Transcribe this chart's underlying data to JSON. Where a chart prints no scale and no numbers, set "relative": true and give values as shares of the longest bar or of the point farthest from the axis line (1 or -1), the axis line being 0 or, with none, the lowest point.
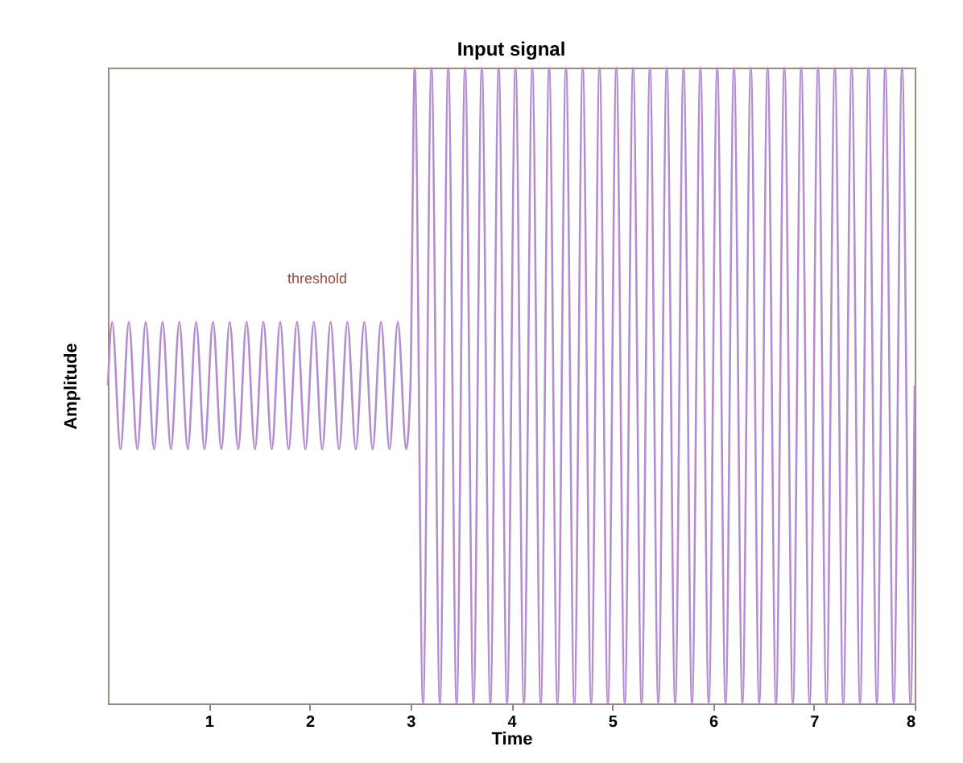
{
  "chart_data": {
    "type": "line",
    "title": "Input signal",
    "xlabel": "Time",
    "ylabel": "Amplitude",
    "relative": true,
    "x": [
      0,
      0.042,
      0.125,
      0.208,
      0.292,
      0.375,
      0.458,
      0.542,
      0.625,
      0.708,
      0.792,
      0.875,
      0.958,
      1.042,
      1.125,
      1.208,
      1.292,
      1.375,
      1.458,
      1.542,
      1.625,
      1.708,
      1.792,
      1.875,
      1.958,
      2.042,
      2.125,
      2.208,
      2.292,
      2.375,
      2.458,
      2.542,
      2.625,
      2.708,
      2.792,
      2.875,
      2.958,
      3,
      3.042,
      3.125,
      3.208,
      3.292,
      3.375,
      3.458,
      3.542,
      3.625,
      3.708,
      3.792,
      3.875,
      3.958,
      4.042,
      4.125,
      4.208,
      4.292,
      4.375,
      4.458,
      4.542,
      4.625,
      4.708,
      4.792,
      4.875,
      4.958,
      5.042,
      5.125,
      5.208,
      5.292,
      5.375,
      5.458,
      5.542,
      5.625,
      5.708,
      5.792,
      5.875,
      5.958,
      6.042,
      6.125,
      6.208,
      6.292,
      6.375,
      6.458,
      6.542,
      6.625,
      6.708,
      6.792,
      6.875,
      6.958,
      7.042,
      7.125,
      7.208,
      7.292,
      7.375,
      7.458,
      7.542,
      7.625,
      7.708,
      7.792,
      7.875,
      7.958,
      8
    ],
    "series": [
      {
        "color": "#b48cd2",
        "values": [
          0.5,
          0.6,
          0.4,
          0.6,
          0.4,
          0.6,
          0.4,
          0.6,
          0.4,
          0.6,
          0.4,
          0.6,
          0.4,
          0.6,
          0.4,
          0.6,
          0.4,
          0.6,
          0.4,
          0.6,
          0.4,
          0.6,
          0.4,
          0.6,
          0.4,
          0.6,
          0.4,
          0.6,
          0.4,
          0.6,
          0.4,
          0.6,
          0.4,
          0.6,
          0.4,
          0.6,
          0.4,
          0.5,
          1,
          0,
          1,
          0,
          1,
          0,
          1,
          0,
          1,
          0,
          1,
          0,
          1,
          0,
          1,
          0,
          1,
          0,
          1,
          0,
          1,
          0,
          1,
          0,
          1,
          0,
          1,
          0,
          1,
          0,
          1,
          0,
          1,
          0,
          1,
          0,
          1,
          0,
          1,
          0,
          1,
          0,
          1,
          0,
          1,
          0,
          1,
          0,
          1,
          0,
          1,
          0,
          1,
          0,
          1,
          0,
          1,
          0,
          1,
          0,
          0.5
        ]
      }
    ],
    "xlim": [
      0,
      8
    ],
    "xticks": [
      1,
      2,
      3,
      4,
      5,
      6,
      7,
      8
    ],
    "grid": false,
    "annotations": [
      "threshold"
    ]
  }
}
